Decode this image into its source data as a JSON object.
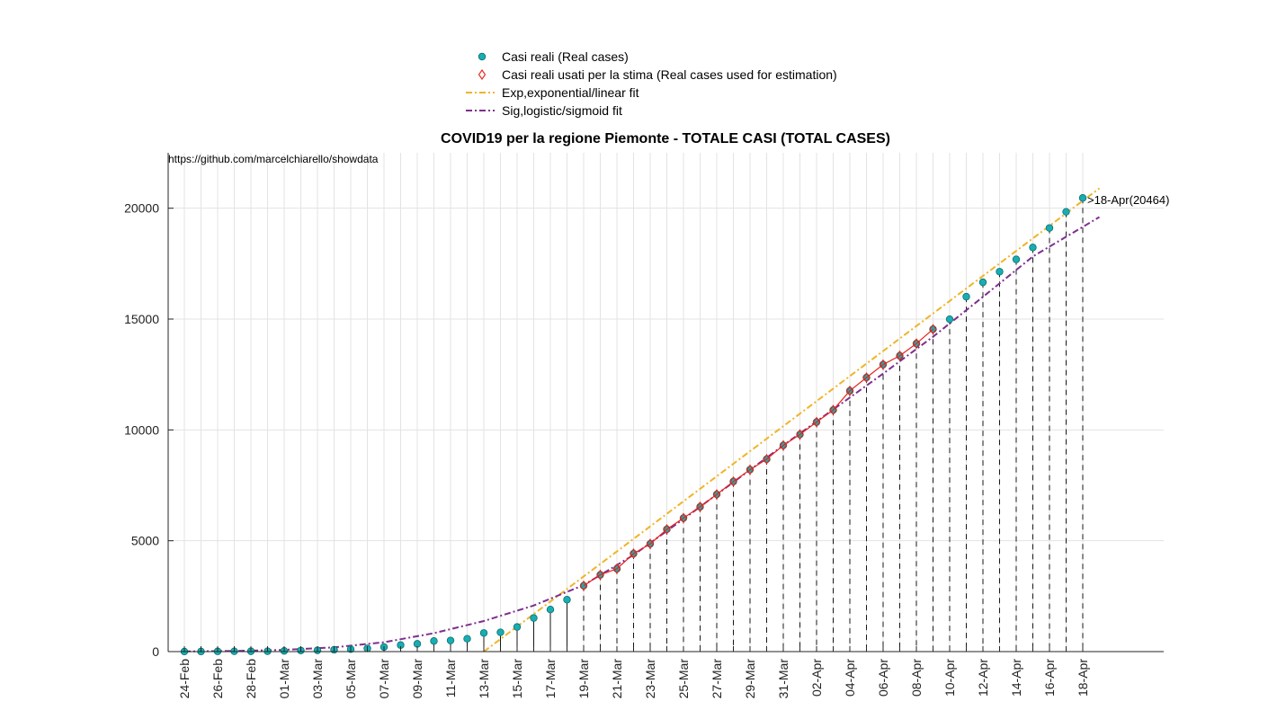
{
  "chart_data": {
    "type": "scatter",
    "title": "COVID19 per la regione Piemonte - TOTALE CASI (TOTAL CASES)",
    "source_note": "https://github.com/marcelchiarello/showdata",
    "xlabel": "",
    "ylabel": "",
    "ylim": [
      0,
      22500
    ],
    "yticks": [
      0,
      5000,
      10000,
      15000,
      20000
    ],
    "grid": true,
    "legend_position": "top-center",
    "x_dates": [
      "24-Feb",
      "25-Feb",
      "26-Feb",
      "27-Feb",
      "28-Feb",
      "29-Feb",
      "01-Mar",
      "02-Mar",
      "03-Mar",
      "04-Mar",
      "05-Mar",
      "06-Mar",
      "07-Mar",
      "08-Mar",
      "09-Mar",
      "10-Mar",
      "11-Mar",
      "12-Mar",
      "13-Mar",
      "14-Mar",
      "15-Mar",
      "16-Mar",
      "17-Mar",
      "18-Mar",
      "19-Mar",
      "20-Mar",
      "21-Mar",
      "22-Mar",
      "23-Mar",
      "24-Mar",
      "25-Mar",
      "26-Mar",
      "27-Mar",
      "28-Mar",
      "29-Mar",
      "30-Mar",
      "31-Mar",
      "01-Apr",
      "02-Apr",
      "03-Apr",
      "04-Apr",
      "05-Apr",
      "06-Apr",
      "07-Apr",
      "08-Apr",
      "09-Apr",
      "10-Apr",
      "11-Apr",
      "12-Apr",
      "13-Apr",
      "14-Apr",
      "15-Apr",
      "16-Apr",
      "17-Apr",
      "18-Apr"
    ],
    "x_tick_labels": [
      "24-Feb",
      "26-Feb",
      "28-Feb",
      "01-Mar",
      "03-Mar",
      "05-Mar",
      "07-Mar",
      "09-Mar",
      "11-Mar",
      "13-Mar",
      "15-Mar",
      "17-Mar",
      "19-Mar",
      "21-Mar",
      "23-Mar",
      "25-Mar",
      "27-Mar",
      "29-Mar",
      "31-Mar",
      "02-Apr",
      "04-Apr",
      "06-Apr",
      "08-Apr",
      "10-Apr",
      "12-Apr",
      "14-Apr",
      "16-Apr",
      "18-Apr"
    ],
    "series": [
      {
        "name": "Casi reali (Real cases)",
        "kind": "points",
        "color": "#17aeb3",
        "values": [
          3,
          6,
          11,
          13,
          15,
          16,
          30,
          50,
          56,
          82,
          108,
          143,
          207,
          294,
          350,
          477,
          501,
          580,
          840,
          869,
          1111,
          1516,
          1897,
          2341,
          2972,
          3461,
          3736,
          4420,
          4861,
          5515,
          6024,
          6532,
          7092,
          7671,
          8206,
          8678,
          9301,
          9795,
          10353,
          10897,
          11763,
          12362,
          12947,
          13343,
          13895,
          14541,
          14993,
          16008,
          16658,
          17138,
          17692,
          18229,
          19109,
          19837,
          20464
        ]
      },
      {
        "name": "Casi reali usati per la stima (Real cases used for estimation)",
        "kind": "diamond-markers",
        "color": "#e8231a",
        "start_date": "19-Mar",
        "end_date": "09-Apr"
      },
      {
        "name": "Exp,exponential/linear fit",
        "kind": "line",
        "color": "#f0b429",
        "points": [
          {
            "x": "13-Mar",
            "y": 0
          },
          {
            "x": "19-Apr",
            "y": 20900
          }
        ]
      },
      {
        "name": "Sig,logistic/sigmoid fit",
        "kind": "line",
        "color": "#7e2f8e",
        "points": [
          {
            "x": "24-Feb",
            "y": 10
          },
          {
            "x": "27-Feb",
            "y": 30
          },
          {
            "x": "01-Mar",
            "y": 75
          },
          {
            "x": "04-Mar",
            "y": 190
          },
          {
            "x": "07-Mar",
            "y": 420
          },
          {
            "x": "10-Mar",
            "y": 830
          },
          {
            "x": "13-Mar",
            "y": 1380
          },
          {
            "x": "16-Mar",
            "y": 2080
          },
          {
            "x": "19-Mar",
            "y": 3000
          },
          {
            "x": "22-Mar",
            "y": 4360
          },
          {
            "x": "25-Mar",
            "y": 5980
          },
          {
            "x": "28-Mar",
            "y": 7640
          },
          {
            "x": "31-Mar",
            "y": 9300
          },
          {
            "x": "03-Apr",
            "y": 10920
          },
          {
            "x": "06-Apr",
            "y": 12540
          },
          {
            "x": "09-Apr",
            "y": 14200
          },
          {
            "x": "12-Apr",
            "y": 16000
          },
          {
            "x": "15-Apr",
            "y": 17820
          },
          {
            "x": "19-Apr",
            "y": 19600
          }
        ]
      }
    ],
    "annotations": [
      {
        "x": "18-Apr",
        "y": 20464,
        "text": ">18-Apr(20464)"
      }
    ]
  }
}
